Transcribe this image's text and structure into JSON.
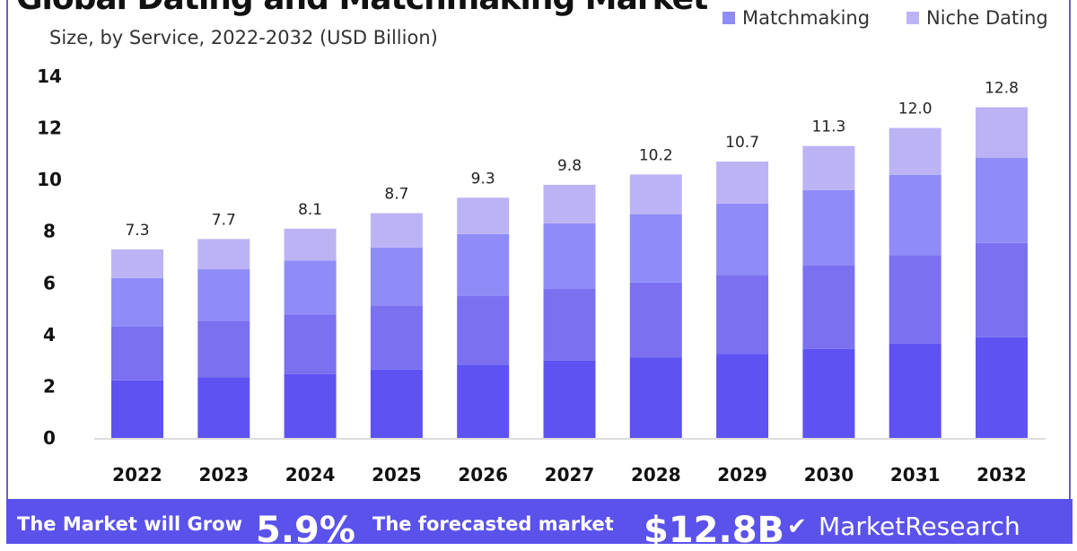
{
  "title": "Global Dating and Matchmaking Market",
  "subtitle": "Size, by Service, 2022-2032 (USD Billion)",
  "banner": {
    "grow_text": "The Market will Grow",
    "cagr": "5.9%",
    "forecast_text": "The forecasted market",
    "forecast_value": "$12.8B",
    "brand": "MarketResearch"
  },
  "chart_data": {
    "type": "bar",
    "stacked": true,
    "title": "Global Dating and Matchmaking Market",
    "subtitle": "Size, by Service, 2022-2032 (USD Billion)",
    "categories": [
      "2022",
      "2023",
      "2024",
      "2025",
      "2026",
      "2027",
      "2028",
      "2029",
      "2030",
      "2031",
      "2032"
    ],
    "totals": [
      "7.3",
      "7.7",
      "8.1",
      "8.7",
      "9.3",
      "9.8",
      "10.2",
      "10.7",
      "11.3",
      "12.0",
      "12.8"
    ],
    "series": [
      {
        "name": "",
        "color": "#5e52f2",
        "values": [
          2.23,
          2.35,
          2.47,
          2.65,
          2.84,
          2.99,
          3.11,
          3.26,
          3.45,
          3.66,
          3.9
        ]
      },
      {
        "name": "",
        "color": "#7b70f0",
        "values": [
          2.08,
          2.19,
          2.31,
          2.48,
          2.65,
          2.79,
          2.91,
          3.05,
          3.22,
          3.42,
          3.65
        ]
      },
      {
        "name": "Matchmaking",
        "color": "#8f8cf8",
        "values": [
          1.88,
          1.99,
          2.09,
          2.24,
          2.4,
          2.53,
          2.63,
          2.76,
          2.92,
          3.1,
          3.3
        ]
      },
      {
        "name": "Niche Dating",
        "color": "#bcb3f5",
        "values": [
          1.11,
          1.17,
          1.23,
          1.33,
          1.41,
          1.49,
          1.55,
          1.63,
          1.71,
          1.82,
          1.95
        ]
      }
    ],
    "yticks": [
      "0",
      "2",
      "4",
      "6",
      "8",
      "10",
      "12",
      "14"
    ],
    "ylim": [
      0,
      14
    ],
    "xlabel": "",
    "ylabel": "",
    "grid": false,
    "legend": "top-right"
  }
}
